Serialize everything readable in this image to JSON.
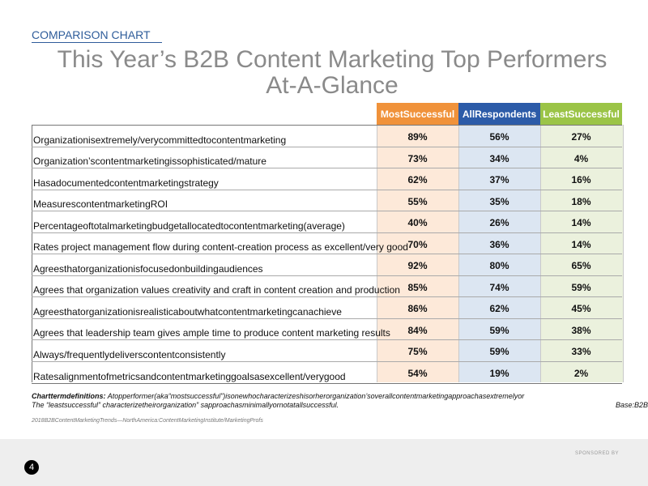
{
  "kicker": "COMPARISON CHART",
  "title_line1": "This Year’s B2B Content Marketing Top Performers",
  "title_line2": "At-A-Glance",
  "columns": {
    "most": "MostSuccessful",
    "all": "AllRespondents",
    "least": "LeastSuccessful"
  },
  "colors": {
    "most": "#f0923a",
    "all": "#2c5ba8",
    "least": "#9bc447"
  },
  "rows": [
    {
      "label": "Organizationisextremely/verycommittedtocontentmarketing",
      "most": "89%",
      "all": "56%",
      "least": "27%"
    },
    {
      "label": "Organization’scontentmarketingissophisticated/mature",
      "most": "73%",
      "all": "34%",
      "least": "4%"
    },
    {
      "label": "Hasadocumentedcontentmarketingstrategy",
      "most": "62%",
      "all": "37%",
      "least": "16%"
    },
    {
      "label": "MeasurescontentmarketingROI",
      "most": "55%",
      "all": "35%",
      "least": "18%"
    },
    {
      "label": "Percentageoftotalmarketingbudgetallocatedtocontentmarketing(average)",
      "most": "40%",
      "all": "26%",
      "least": "14%"
    },
    {
      "label": "Rates project management flow during content-creation process as excellent/very good",
      "most": "70%",
      "all": "36%",
      "least": "14%"
    },
    {
      "label": "Agreesthatorganizationisfocusedonbuildingaudiences",
      "most": "92%",
      "all": "80%",
      "least": "65%"
    },
    {
      "label": "Agrees that organization values creativity and craft in content creation and production",
      "most": "85%",
      "all": "74%",
      "least": "59%"
    },
    {
      "label": "Agreesthatorganizationisrealisticaboutwhatcontentmarketingcanachieve",
      "most": "86%",
      "all": "62%",
      "least": "45%"
    },
    {
      "label": "Agrees that leadership team gives ample time to produce content marketing results",
      "most": "84%",
      "all": "59%",
      "least": "38%"
    },
    {
      "label": "Always/frequentlydeliverscontentconsistently",
      "most": "75%",
      "all": "59%",
      "least": "33%"
    },
    {
      "label": "Ratesalignmentofmetricsandcontentmarketinggoalsasexcellent/verygood",
      "most": "54%",
      "all": "19%",
      "least": "2%"
    }
  ],
  "definitions_label": "Charttermdefinitions:",
  "definitions_line1": "Atopperformer(aka“mostsuccessful”)isonewhocharacterizeshisorherorganization’soverallcontentmarketingapproachasextremelyor",
  "definitions_line2": "The “leastsuccessful” characterizetheirorganization” sapproachasminimallyornotatallsuccessful.",
  "base_text": "Base:B2B",
  "source": "2018B2BContentMarketingTrends—NorthAmerica:ContentMarketingInstitute/MarketingProfs",
  "sponsored": "SPONSORED BY",
  "page_number": "4"
}
